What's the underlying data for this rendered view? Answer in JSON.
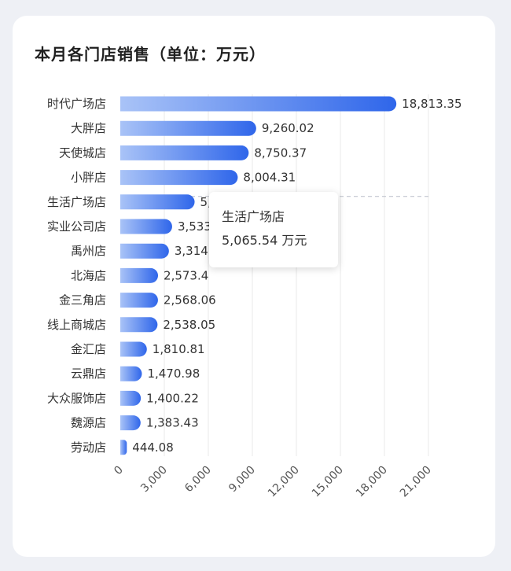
{
  "colors": {
    "bar_start": "#a9c3f7",
    "bar_end": "#2f66ea",
    "grid": "#e8e8e8",
    "text": "#333333"
  },
  "chart_data": {
    "type": "bar",
    "orientation": "horizontal",
    "title": "本月各门店销售（单位：万元）",
    "categories": [
      "时代广场店",
      "大胖店",
      "天使城店",
      "小胖店",
      "生活广场店",
      "实业公司店",
      "禹州店",
      "北海店",
      "金三角店",
      "线上商城店",
      "金汇店",
      "云鼎店",
      "大众服饰店",
      "魏源店",
      "劳动店"
    ],
    "values": [
      18813.35,
      9260.02,
      8750.37,
      8004.31,
      5065.54,
      3533,
      3314,
      2573.4,
      2568.06,
      2538.05,
      1810.81,
      1470.98,
      1400.22,
      1383.43,
      444.08
    ],
    "value_labels": [
      "18,813.35",
      "9,260.02",
      "8,750.37",
      "8,004.31",
      "5,065.54",
      "3,533",
      "3,314",
      "2,573.4",
      "2,568.06",
      "2,538.05",
      "1,810.81",
      "1,470.98",
      "1,400.22",
      "1,383.43",
      "444.08"
    ],
    "xlim": [
      0,
      21000
    ],
    "x_ticks": [
      0,
      3000,
      6000,
      9000,
      12000,
      15000,
      18000,
      21000
    ],
    "x_tick_labels": [
      "0",
      "3,000",
      "6,000",
      "9,000",
      "12,000",
      "15,000",
      "18,000",
      "21,000"
    ],
    "grid": true,
    "unit": "万元"
  },
  "tooltip": {
    "name": "生活广场店",
    "value": "5,065.54 万元"
  }
}
